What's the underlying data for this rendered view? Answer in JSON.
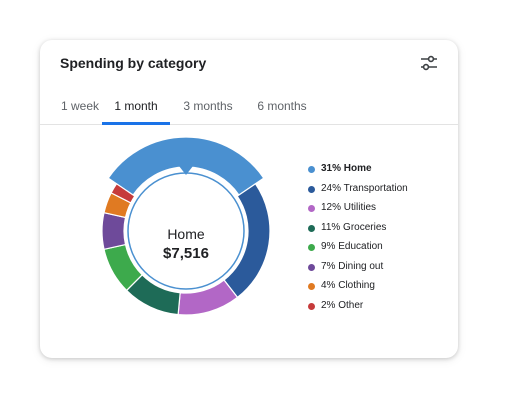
{
  "card": {
    "title": "Spending by category",
    "filter_icon": "tune-icon"
  },
  "tabs": [
    {
      "label": "1 week",
      "active": false
    },
    {
      "label": "1 month",
      "active": true
    },
    {
      "label": "3 months",
      "active": false
    },
    {
      "label": "6 months",
      "active": false
    }
  ],
  "center": {
    "label": "Home",
    "value": "$7,516"
  },
  "chart_data": {
    "type": "pie",
    "selected": "Home",
    "categories": [
      "Home",
      "Transportation",
      "Utilities",
      "Groceries",
      "Education",
      "Dining out",
      "Clothing",
      "Other"
    ],
    "values": [
      31,
      24,
      12,
      11,
      9,
      7,
      4,
      2
    ],
    "labels": [
      "31% Home",
      "24% Transportation",
      "12% Utilities",
      "11% Groceries",
      "9% Education",
      "7% Dining out",
      "4% Clothing",
      "2% Other"
    ],
    "colors": [
      "#4a90d0",
      "#2b5a9b",
      "#b267c6",
      "#1e6b57",
      "#3daa4c",
      "#6e4a9a",
      "#e07a22",
      "#c63b3b"
    ]
  }
}
